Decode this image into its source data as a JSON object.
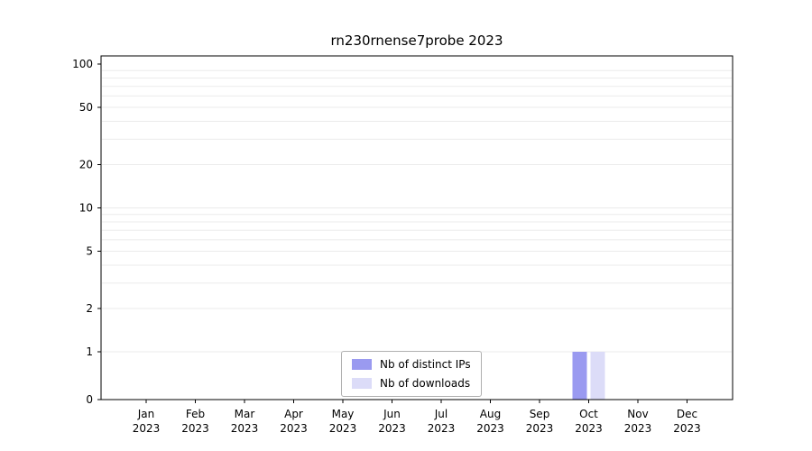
{
  "chart_data": {
    "type": "bar",
    "title": "rn230rnense7probe 2023",
    "categories": [
      "Jan 2023",
      "Feb 2023",
      "Mar 2023",
      "Apr 2023",
      "May 2023",
      "Jun 2023",
      "Jul 2023",
      "Aug 2023",
      "Sep 2023",
      "Oct 2023",
      "Nov 2023",
      "Dec 2023"
    ],
    "months": [
      "Jan",
      "Feb",
      "Mar",
      "Apr",
      "May",
      "Jun",
      "Jul",
      "Aug",
      "Sep",
      "Oct",
      "Nov",
      "Dec"
    ],
    "year": "2023",
    "series": [
      {
        "name": "Nb of distinct IPs",
        "color": "#9a9af0",
        "values": [
          0,
          0,
          0,
          0,
          0,
          0,
          0,
          0,
          0,
          1,
          0,
          0
        ]
      },
      {
        "name": "Nb of downloads",
        "color": "#dcdcf8",
        "values": [
          0,
          0,
          0,
          0,
          0,
          0,
          0,
          0,
          0,
          1,
          0,
          0
        ]
      }
    ],
    "y_ticks": [
      0,
      1,
      2,
      5,
      10,
      20,
      50,
      100
    ],
    "y_scale": "symlog",
    "ylim": [
      0,
      115
    ],
    "grid": "horizontal-minor",
    "legend_position": "lower-center"
  }
}
